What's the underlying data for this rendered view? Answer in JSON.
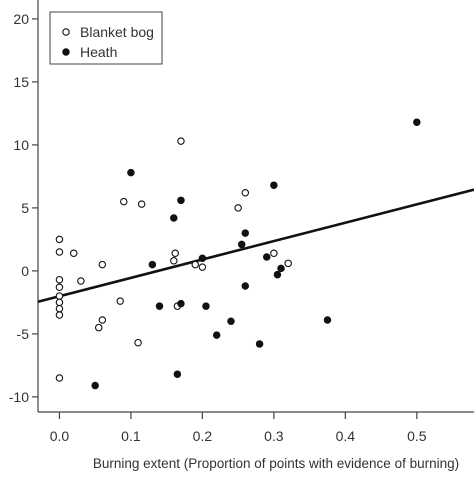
{
  "chart_data": {
    "type": "scatter",
    "title": "",
    "xlabel": "Burning extent (Proportion of points with evidence of burning)",
    "ylabel": "",
    "xlim": [
      -0.03,
      0.58
    ],
    "ylim": [
      -11.2,
      21.5
    ],
    "x_ticks": [
      0.0,
      0.1,
      0.2,
      0.3,
      0.4,
      0.5
    ],
    "x_tick_labels": [
      "0.0",
      "0.1",
      "0.2",
      "0.3",
      "0.4",
      "0.5"
    ],
    "y_ticks": [
      -10,
      -5,
      0,
      5,
      10,
      15,
      20
    ],
    "y_tick_labels": [
      "-10",
      "-5",
      "0",
      "5",
      "10",
      "15",
      "20"
    ],
    "grid": false,
    "legend_position": "top-left",
    "series": [
      {
        "name": "Blanket bog",
        "marker": "open-circle",
        "color": "#111111",
        "points": [
          [
            0.0,
            2.5
          ],
          [
            0.0,
            1.5
          ],
          [
            0.0,
            -0.7
          ],
          [
            0.0,
            -1.3
          ],
          [
            0.0,
            -2.0
          ],
          [
            0.0,
            -2.5
          ],
          [
            0.0,
            -3.0
          ],
          [
            0.0,
            -3.5
          ],
          [
            0.0,
            -8.5
          ],
          [
            0.02,
            1.4
          ],
          [
            0.03,
            -0.8
          ],
          [
            0.055,
            -4.5
          ],
          [
            0.06,
            -3.9
          ],
          [
            0.06,
            0.5
          ],
          [
            0.085,
            -2.4
          ],
          [
            0.09,
            5.5
          ],
          [
            0.11,
            -5.7
          ],
          [
            0.115,
            5.3
          ],
          [
            0.16,
            0.8
          ],
          [
            0.162,
            1.4
          ],
          [
            0.165,
            -2.8
          ],
          [
            0.17,
            10.3
          ],
          [
            0.19,
            0.5
          ],
          [
            0.2,
            0.3
          ],
          [
            0.25,
            5.0
          ],
          [
            0.26,
            6.2
          ],
          [
            0.3,
            1.4
          ],
          [
            0.32,
            0.6
          ]
        ]
      },
      {
        "name": "Heath",
        "marker": "filled-circle",
        "color": "#111111",
        "points": [
          [
            0.1,
            7.8
          ],
          [
            0.13,
            0.5
          ],
          [
            0.14,
            -2.8
          ],
          [
            0.16,
            4.2
          ],
          [
            0.165,
            -8.2
          ],
          [
            0.17,
            5.6
          ],
          [
            0.17,
            -2.6
          ],
          [
            0.2,
            1.0
          ],
          [
            0.205,
            -2.8
          ],
          [
            0.22,
            -5.1
          ],
          [
            0.24,
            -4.0
          ],
          [
            0.255,
            2.1
          ],
          [
            0.26,
            -1.2
          ],
          [
            0.26,
            3.0
          ],
          [
            0.28,
            -5.8
          ],
          [
            0.29,
            1.1
          ],
          [
            0.3,
            6.8
          ],
          [
            0.305,
            -0.3
          ],
          [
            0.31,
            0.2
          ],
          [
            0.375,
            -3.9
          ],
          [
            0.5,
            11.8
          ],
          [
            0.05,
            -9.1
          ]
        ]
      }
    ],
    "fit_line": {
      "x": [
        -0.03,
        0.58
      ],
      "y": [
        -2.45,
        6.45
      ]
    }
  }
}
